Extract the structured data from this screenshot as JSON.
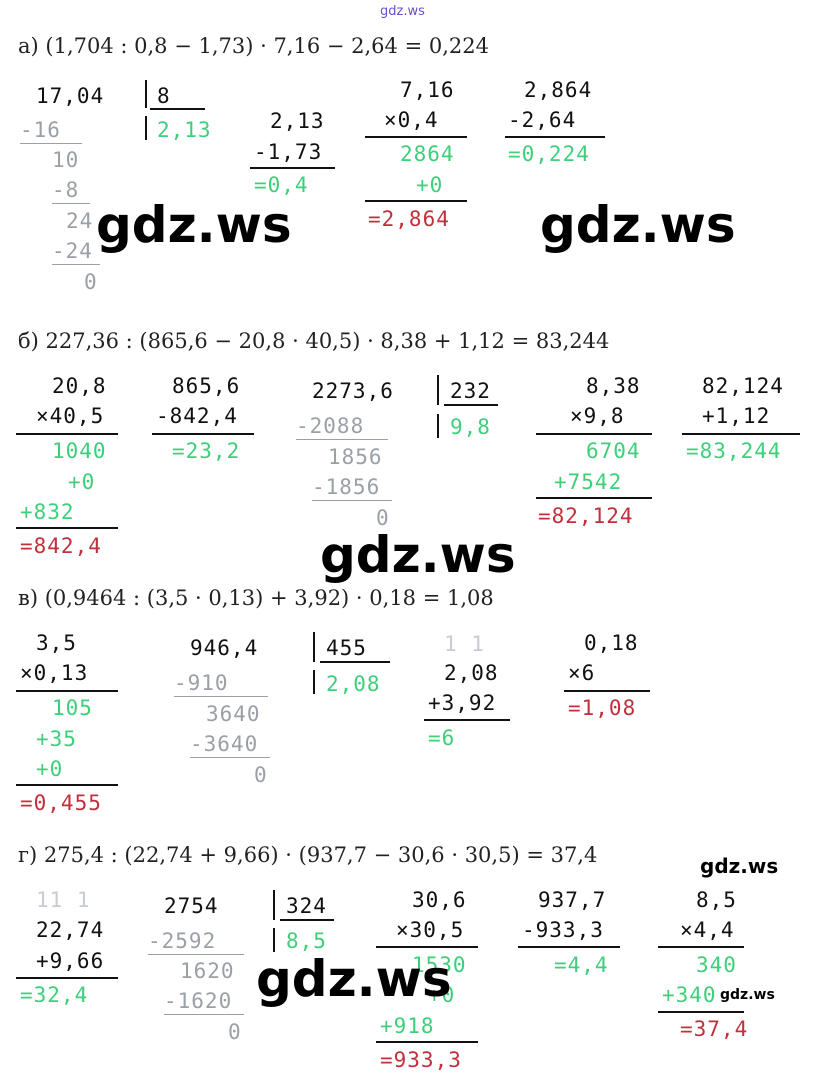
{
  "watermark": "gdz.ws",
  "a": {
    "header": "а) (1,704 : 0,8 − 1,73) · 7,16 − 2,64 = 0,224",
    "div": {
      "dividend": "17,04",
      "divisor": "8",
      "sub1": "-16",
      "rem1": "10",
      "sub2": "-8",
      "rem2": "24",
      "sub3": "-24",
      "rem3": "0",
      "quotient": "2,13"
    },
    "sub1": {
      "top": "2,13",
      "bottom": "-1,73",
      "result": "=0,4"
    },
    "mul": {
      "top": "7,16",
      "bottom": "×0,4",
      "p1": "2864",
      "p2": "+0",
      "result": "=2,864"
    },
    "sub2": {
      "top": "2,864",
      "bottom": "-2,64",
      "result": "=0,224"
    }
  },
  "b": {
    "header": "б) 227,36 : (865,6 − 20,8 · 40,5) · 8,38 + 1,12 = 83,244",
    "mul1": {
      "top": "20,8",
      "bottom": "×40,5",
      "p1": "1040",
      "p2": "+0",
      "p3": "+832",
      "result": "=842,4"
    },
    "sub": {
      "top": "865,6",
      "bottom": "-842,4",
      "result": "=23,2"
    },
    "div": {
      "dividend": "2273,6",
      "divisor": "232",
      "sub1": "-2088",
      "rem1": "1856",
      "sub2": "-1856",
      "rem2": "0",
      "quotient": "9,8"
    },
    "mul2": {
      "top": "8,38",
      "bottom": "×9,8",
      "p1": "6704",
      "p2": "+7542",
      "result": "=82,124"
    },
    "add": {
      "top": "82,124",
      "bottom": "+1,12",
      "result": "=83,244"
    }
  },
  "c": {
    "header": "в) (0,9464 : (3,5 · 0,13) + 3,92) · 0,18 = 1,08",
    "mul1": {
      "top": "3,5",
      "bottom": "×0,13",
      "p1": "105",
      "p2": "+35",
      "p3": "+0",
      "result": "=0,455"
    },
    "div": {
      "dividend": "946,4",
      "divisor": "455",
      "sub1": "-910",
      "rem1": "3640",
      "sub2": "-3640",
      "rem2": "0",
      "quotient": "2,08"
    },
    "add": {
      "carry": "1 1",
      "top": "2,08",
      "bottom": "+3,92",
      "result": "=6"
    },
    "mul2": {
      "top": "0,18",
      "bottom": "×6",
      "result": "=1,08"
    }
  },
  "d": {
    "header": "г) 275,4 : (22,74 + 9,66) · (937,7 − 30,6 · 30,5) = 37,4",
    "add": {
      "carry": "11 1",
      "top": "22,74",
      "bottom": "+9,66",
      "result": "=32,4"
    },
    "div": {
      "dividend": "2754",
      "divisor": "324",
      "sub1": "-2592",
      "rem1": "1620",
      "sub2": "-1620",
      "rem2": "0",
      "quotient": "8,5"
    },
    "mul1": {
      "top": "30,6",
      "bottom": "×30,5",
      "p1": "1530",
      "p2": "+0",
      "p3": "+918",
      "result": "=933,3"
    },
    "sub": {
      "top": "937,7",
      "bottom": "-933,3",
      "result": "=4,4"
    },
    "mul2": {
      "top": "8,5",
      "bottom": "×4,4",
      "p1": "340",
      "p2": "+340",
      "result": "=37,4"
    }
  }
}
